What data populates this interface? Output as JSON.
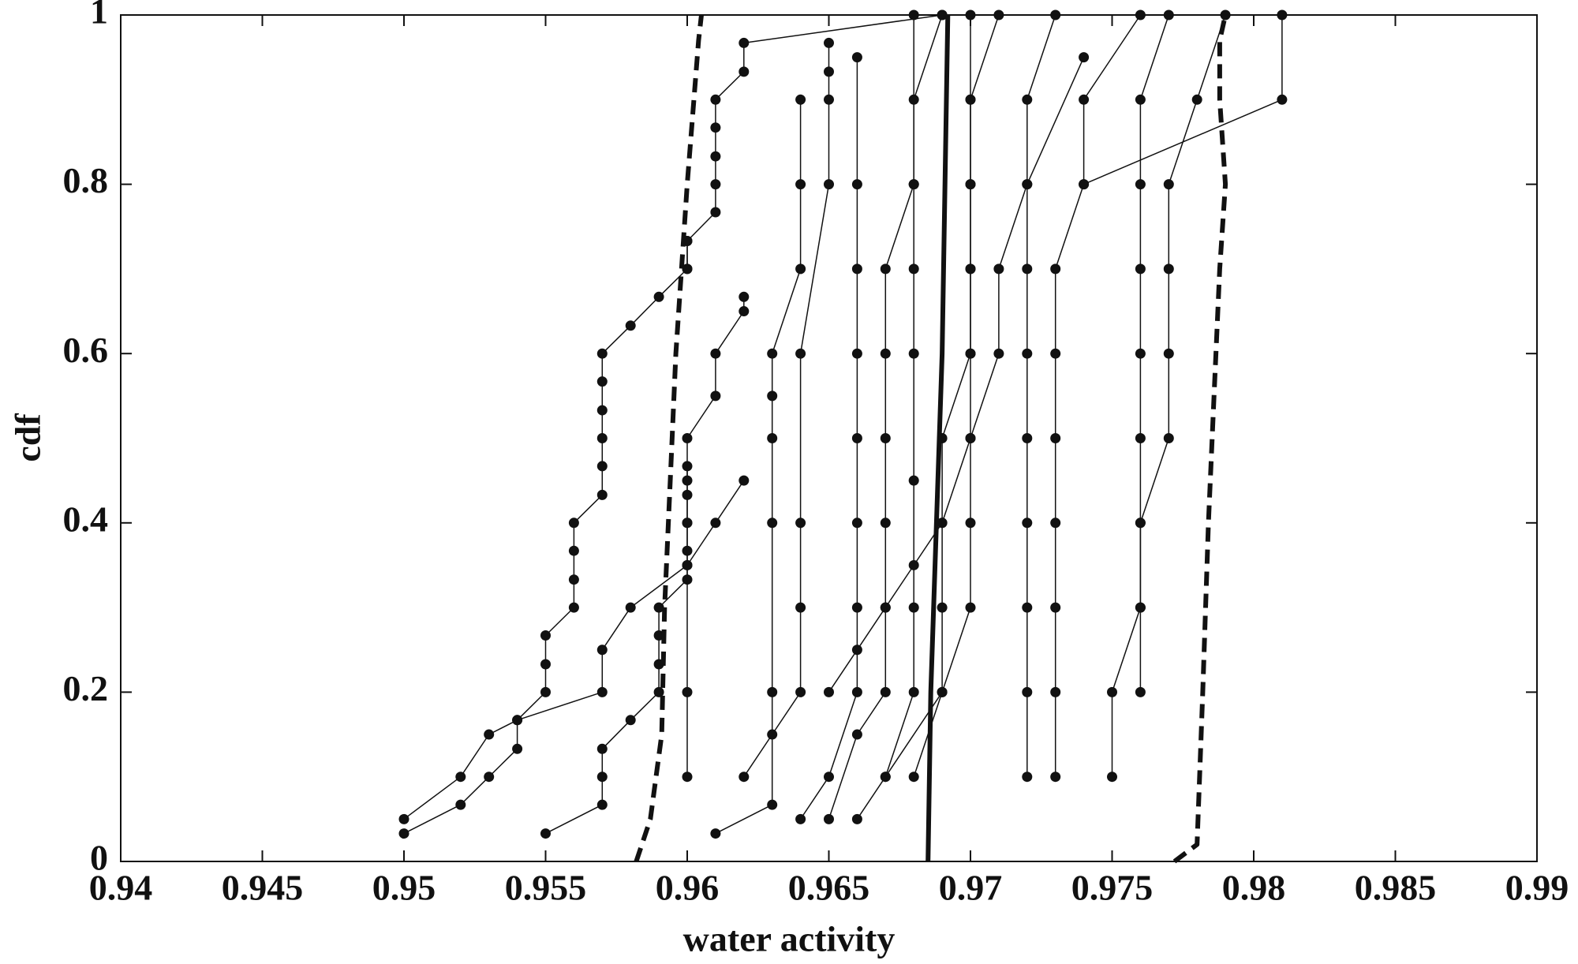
{
  "chart_data": {
    "type": "line",
    "xlabel": "water activity",
    "ylabel": "cdf",
    "xlim": [
      0.94,
      0.99
    ],
    "ylim": [
      0,
      1
    ],
    "xticks": [
      0.94,
      0.945,
      0.95,
      0.955,
      0.96,
      0.965,
      0.97,
      0.975,
      0.98,
      0.985,
      0.99
    ],
    "yticks": [
      0,
      0.2,
      0.4,
      0.6,
      0.8,
      1
    ],
    "grid": false,
    "series": [
      {
        "color": "#111111",
        "marker": true,
        "line_style": "solid",
        "width": 1.5,
        "x": [
          0.95,
          0.952,
          0.953,
          0.954,
          0.954,
          0.955,
          0.955,
          0.955,
          0.956,
          0.956,
          0.956,
          0.956,
          0.957,
          0.957,
          0.957,
          0.957,
          0.957,
          0.957,
          0.958,
          0.959,
          0.96,
          0.96
        ],
        "values": [
          0.033,
          0.067,
          0.1,
          0.133,
          0.167,
          0.2,
          0.233,
          0.267,
          0.3,
          0.333,
          0.367,
          0.4,
          0.433,
          0.467,
          0.5,
          0.533,
          0.567,
          0.6,
          0.633,
          0.667,
          0.7,
          0.733
        ]
      },
      {
        "color": "#111111",
        "marker": true,
        "line_style": "solid",
        "width": 1.5,
        "x": [
          0.95,
          0.952,
          0.953,
          0.954,
          0.957,
          0.957,
          0.958,
          0.96,
          0.961,
          0.962
        ],
        "values": [
          0.05,
          0.1,
          0.15,
          0.167,
          0.2,
          0.25,
          0.3,
          0.35,
          0.4,
          0.45
        ]
      },
      {
        "color": "#111111",
        "marker": true,
        "line_style": "solid",
        "width": 1.5,
        "x": [
          0.955,
          0.957,
          0.957,
          0.957,
          0.958,
          0.959,
          0.959,
          0.959,
          0.959,
          0.96,
          0.96,
          0.96,
          0.96,
          0.96
        ],
        "values": [
          0.033,
          0.067,
          0.1,
          0.133,
          0.167,
          0.2,
          0.233,
          0.267,
          0.3,
          0.333,
          0.367,
          0.4,
          0.433,
          0.467
        ]
      },
      {
        "color": "#111111",
        "marker": true,
        "line_style": "solid",
        "width": 1.5,
        "x": [
          0.96,
          0.96,
          0.961,
          0.961,
          0.961,
          0.961,
          0.961,
          0.962,
          0.962,
          0.969
        ],
        "values": [
          0.7,
          0.733,
          0.767,
          0.8,
          0.833,
          0.867,
          0.9,
          0.933,
          0.967,
          1
        ]
      },
      {
        "color": "#111111",
        "marker": true,
        "line_style": "solid",
        "width": 1.5,
        "x": [
          0.96,
          0.96,
          0.96,
          0.96,
          0.96,
          0.96,
          0.961,
          0.961,
          0.962,
          0.962
        ],
        "values": [
          0.1,
          0.2,
          0.35,
          0.4,
          0.45,
          0.5,
          0.55,
          0.6,
          0.65,
          0.667
        ]
      },
      {
        "color": "#111111",
        "marker": true,
        "line_style": "solid",
        "width": 1.5,
        "x": [
          0.961,
          0.963,
          0.963,
          0.963,
          0.963,
          0.963,
          0.963,
          0.964,
          0.964,
          0.964
        ],
        "values": [
          0.033,
          0.067,
          0.2,
          0.4,
          0.5,
          0.55,
          0.6,
          0.7,
          0.8,
          0.9
        ]
      },
      {
        "color": "#111111",
        "marker": true,
        "line_style": "solid",
        "width": 1.5,
        "x": [
          0.962,
          0.963,
          0.964,
          0.964,
          0.964,
          0.964,
          0.965,
          0.965,
          0.965,
          0.965
        ],
        "values": [
          0.1,
          0.15,
          0.2,
          0.3,
          0.4,
          0.6,
          0.8,
          0.9,
          0.933,
          0.967
        ]
      },
      {
        "color": "#111111",
        "marker": true,
        "line_style": "solid",
        "width": 1.5,
        "x": [
          0.964,
          0.965,
          0.966,
          0.966,
          0.966,
          0.966,
          0.966,
          0.966,
          0.966,
          0.966
        ],
        "values": [
          0.05,
          0.1,
          0.2,
          0.3,
          0.4,
          0.5,
          0.6,
          0.7,
          0.8,
          0.95
        ]
      },
      {
        "color": "#111111",
        "marker": true,
        "line_style": "solid",
        "width": 1.5,
        "x": [
          0.965,
          0.966,
          0.967,
          0.967,
          0.967,
          0.967,
          0.967,
          0.967,
          0.968,
          0.968
        ],
        "values": [
          0.05,
          0.15,
          0.2,
          0.3,
          0.4,
          0.5,
          0.6,
          0.7,
          0.8,
          1
        ]
      },
      {
        "color": "#111111",
        "marker": true,
        "line_style": "solid",
        "width": 1.5,
        "x": [
          0.966,
          0.967,
          0.968,
          0.968,
          0.968,
          0.968,
          0.968,
          0.968,
          0.968,
          0.969
        ],
        "values": [
          0.05,
          0.1,
          0.2,
          0.3,
          0.45,
          0.6,
          0.7,
          0.8,
          0.9,
          1
        ]
      },
      {
        "color": "#111111",
        "marker": true,
        "line_style": "solid",
        "width": 1.5,
        "x": [
          0.967,
          0.969,
          0.969,
          0.969,
          0.969,
          0.97,
          0.97,
          0.97,
          0.97,
          0.971
        ],
        "values": [
          0.1,
          0.2,
          0.3,
          0.4,
          0.5,
          0.6,
          0.7,
          0.8,
          0.9,
          1
        ]
      },
      {
        "color": "#111111",
        "marker": true,
        "line_style": "solid",
        "width": 1.5,
        "x": [
          0.968,
          0.969,
          0.97,
          0.97,
          0.97,
          0.97,
          0.97,
          0.97,
          0.97,
          0.97
        ],
        "values": [
          0.1,
          0.2,
          0.3,
          0.4,
          0.5,
          0.6,
          0.7,
          0.8,
          0.9,
          1
        ]
      },
      {
        "color": "#111111",
        "marker": true,
        "line_style": "solid",
        "width": 1.5,
        "x": [
          0.972,
          0.972,
          0.972,
          0.972,
          0.972,
          0.972,
          0.972,
          0.972,
          0.972,
          0.973
        ],
        "values": [
          0.1,
          0.2,
          0.3,
          0.4,
          0.5,
          0.6,
          0.7,
          0.8,
          0.9,
          1
        ]
      },
      {
        "color": "#111111",
        "marker": true,
        "line_style": "solid",
        "width": 1.5,
        "x": [
          0.973,
          0.973,
          0.973,
          0.973,
          0.973,
          0.973,
          0.973,
          0.974,
          0.974,
          0.976
        ],
        "values": [
          0.1,
          0.2,
          0.3,
          0.4,
          0.5,
          0.6,
          0.7,
          0.8,
          0.9,
          1
        ]
      },
      {
        "color": "#111111",
        "marker": true,
        "line_style": "solid",
        "width": 1.5,
        "x": [
          0.975,
          0.975,
          0.976,
          0.976,
          0.976,
          0.976,
          0.976,
          0.976,
          0.976,
          0.977
        ],
        "values": [
          0.1,
          0.2,
          0.3,
          0.4,
          0.5,
          0.6,
          0.7,
          0.8,
          0.9,
          1
        ]
      },
      {
        "color": "#111111",
        "marker": true,
        "line_style": "solid",
        "width": 1.5,
        "x": [
          0.976,
          0.976,
          0.976,
          0.977,
          0.977,
          0.977,
          0.977,
          0.978,
          0.979
        ],
        "values": [
          0.2,
          0.3,
          0.4,
          0.5,
          0.6,
          0.7,
          0.8,
          0.9,
          1
        ]
      },
      {
        "color": "#111111",
        "marker": true,
        "line_style": "solid",
        "width": 1.5,
        "x": [
          0.974,
          0.981,
          0.981
        ],
        "values": [
          0.8,
          0.9,
          1
        ]
      },
      {
        "color": "#111111",
        "marker": true,
        "line_style": "solid",
        "width": 1.5,
        "x": [
          0.965,
          0.966,
          0.967,
          0.968,
          0.969,
          0.97,
          0.971,
          0.971,
          0.972,
          0.974
        ],
        "values": [
          0.2,
          0.25,
          0.3,
          0.35,
          0.4,
          0.5,
          0.6,
          0.7,
          0.8,
          0.95
        ]
      },
      {
        "color": "#111111",
        "marker": false,
        "line_style": "dashed",
        "width": 6,
        "x": [
          0.9582,
          0.9587,
          0.9591,
          0.9592,
          0.9594,
          0.9596,
          0.9598,
          0.96,
          0.9604,
          0.9605
        ],
        "values": [
          0,
          0.05,
          0.15,
          0.3,
          0.45,
          0.6,
          0.7,
          0.8,
          0.97,
          1
        ]
      },
      {
        "color": "#111111",
        "marker": false,
        "line_style": "dashed",
        "width": 6,
        "x": [
          0.9772,
          0.978,
          0.9782,
          0.9784,
          0.9786,
          0.9788,
          0.979,
          0.9788,
          0.9788,
          0.979
        ],
        "values": [
          0,
          0.02,
          0.2,
          0.4,
          0.55,
          0.7,
          0.8,
          0.9,
          0.97,
          1
        ]
      },
      {
        "color": "#111111",
        "marker": false,
        "line_style": "solid",
        "width": 6,
        "x": [
          0.9685,
          0.9686,
          0.9688,
          0.969,
          0.9691,
          0.9692
        ],
        "values": [
          0,
          0.2,
          0.4,
          0.6,
          0.8,
          1
        ]
      }
    ]
  }
}
